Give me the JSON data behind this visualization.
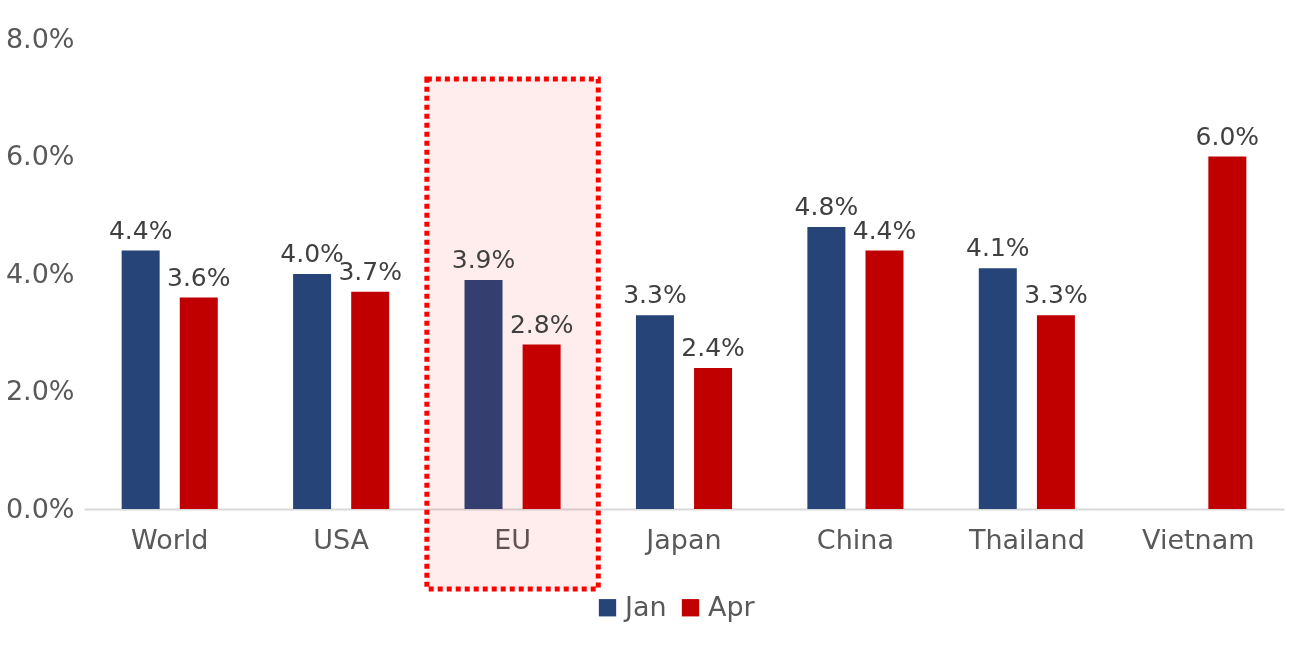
{
  "chart_data": {
    "type": "bar",
    "categories": [
      "World",
      "USA",
      "EU",
      "Japan",
      "China",
      "Thailand",
      "Vietnam"
    ],
    "series": [
      {
        "name": "Jan",
        "color": "#264478",
        "values": [
          4.4,
          4.0,
          3.9,
          3.3,
          4.8,
          4.1,
          null
        ],
        "value_labels": [
          "4.4%",
          "4.0%",
          "3.9%",
          "3.3%",
          "4.8%",
          "4.1%",
          null
        ]
      },
      {
        "name": "Apr",
        "color": "#c00000",
        "values": [
          3.6,
          3.7,
          2.8,
          2.4,
          4.4,
          3.3,
          6.0
        ],
        "value_labels": [
          "3.6%",
          "3.7%",
          "2.8%",
          "2.4%",
          "4.4%",
          "3.3%",
          "6.0%"
        ]
      }
    ],
    "ylim": [
      0,
      8
    ],
    "yticks": [
      {
        "value": 0,
        "label": "0.0%"
      },
      {
        "value": 2,
        "label": "2.0%"
      },
      {
        "value": 4,
        "label": "4.0%"
      },
      {
        "value": 6,
        "label": "6.0%"
      },
      {
        "value": 8,
        "label": "8.0%"
      }
    ],
    "bands": [
      {
        "axis": "x",
        "from": "EU",
        "to": "EU",
        "color": "#ff0000"
      }
    ],
    "grid": false,
    "legend": "bottom"
  }
}
